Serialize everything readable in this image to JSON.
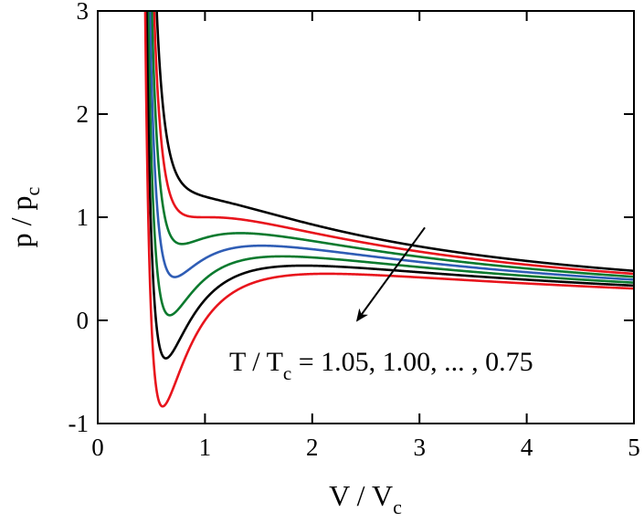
{
  "chart_data": {
    "type": "line",
    "xlabel": "V / V",
    "xlabel_sub": "c",
    "ylabel": "p / p",
    "ylabel_sub": "c",
    "xlim": [
      0,
      5
    ],
    "ylim": [
      -1,
      3
    ],
    "x_ticks": [
      0,
      1,
      2,
      3,
      4,
      5
    ],
    "x_tick_labels": [
      "0",
      "1",
      "2",
      "3",
      "4",
      "5"
    ],
    "y_ticks": [
      -1,
      0,
      1,
      2,
      3
    ],
    "y_tick_labels": [
      "-1",
      "0",
      "1",
      "2",
      "3"
    ],
    "grid": false,
    "annotation": {
      "prefix": "T / T",
      "sub": "c",
      "suffix": " = 1.05, 1.00, ... , 0.75",
      "arrow_from": [
        3.05,
        0.9
      ],
      "arrow_to": [
        2.42,
        0.0
      ]
    },
    "series": [
      {
        "temperature": 1.05,
        "color": "#000000"
      },
      {
        "temperature": 1.0,
        "color": "#e8141c"
      },
      {
        "temperature": 0.95,
        "color": "#0b7a2e"
      },
      {
        "temperature": 0.9,
        "color": "#2f5db5"
      },
      {
        "temperature": 0.85,
        "color": "#0b7a2e"
      },
      {
        "temperature": 0.8,
        "color": "#000000"
      },
      {
        "temperature": 0.75,
        "color": "#e8141c"
      }
    ]
  }
}
